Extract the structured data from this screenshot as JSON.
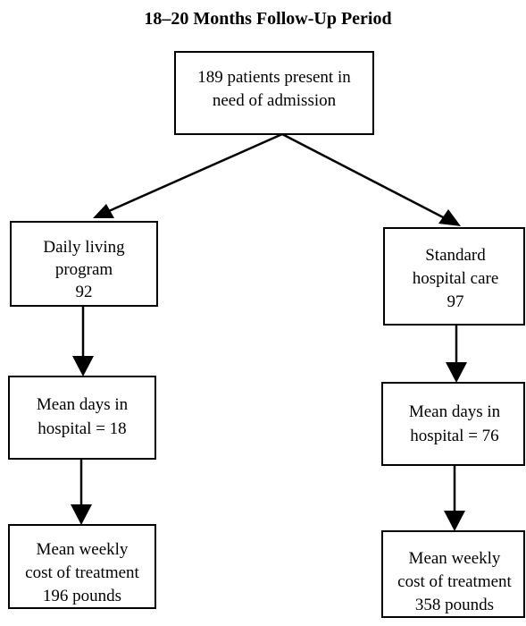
{
  "title": "18–20 Months Follow-Up Period",
  "nodes": [
    {
      "lines": [
        "189 patients present in",
        "need of admission"
      ]
    },
    {
      "lines": [
        "Daily living",
        "program",
        "92"
      ]
    },
    {
      "lines": [
        "Standard",
        "hospital care",
        "97"
      ]
    },
    {
      "lines": [
        "Mean days in",
        "hospital = 18"
      ]
    },
    {
      "lines": [
        "Mean days in",
        "hospital = 76"
      ]
    },
    {
      "lines": [
        "Mean weekly",
        "cost of treatment",
        "196 pounds"
      ]
    },
    {
      "lines": [
        "Mean weekly",
        "cost of treatment",
        "358 pounds"
      ]
    }
  ]
}
